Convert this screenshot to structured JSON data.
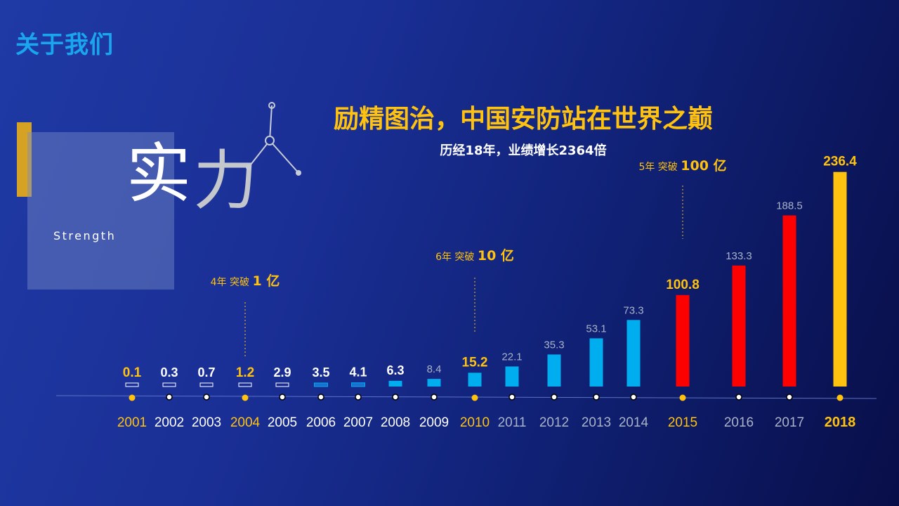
{
  "header": {
    "title": "关于我们"
  },
  "side_panel": {
    "char_1": "实",
    "char_2": "力",
    "subtitle": "Strength"
  },
  "headline": "励精图治，中国安防站在世界之巅",
  "subheadline": "历经18年，业绩增长2364倍",
  "colors": {
    "gold": "#ffc20e",
    "blue": "#00aeef",
    "dark_blue": "#1b6fd0",
    "red": "#ff0000",
    "white": "#ffffff",
    "gray": "#a9b3c8"
  },
  "chart_data": {
    "type": "bar",
    "title": "",
    "xlabel": "",
    "ylabel": "",
    "ylim": [
      0,
      240
    ],
    "categories": [
      "2001",
      "2002",
      "2003",
      "2004",
      "2005",
      "2006",
      "2007",
      "2008",
      "2009",
      "2010",
      "2011",
      "2012",
      "2013",
      "2014",
      "2015",
      "2016",
      "2017",
      "2018"
    ],
    "values": [
      0.1,
      0.3,
      0.7,
      1.2,
      2.9,
      3.5,
      4.1,
      6.3,
      8.4,
      15.2,
      22.1,
      35.3,
      53.1,
      73.3,
      100.8,
      133.3,
      188.5,
      236.4
    ],
    "value_labels": [
      "0.1",
      "0.3",
      "0.7",
      "1.2",
      "2.9",
      "3.5",
      "4.1",
      "6.3",
      "8.4",
      "15.2",
      "22.1",
      "35.3",
      "53.1",
      "73.3",
      "100.8",
      "133.3",
      "188.5",
      "236.4"
    ],
    "bar_styles": [
      "outline",
      "outline",
      "outline",
      "outline",
      "outline",
      "dark",
      "dark",
      "blue",
      "blue",
      "blue",
      "blue",
      "blue",
      "blue",
      "blue",
      "red",
      "red",
      "red",
      "gold"
    ],
    "highlight_years": [
      "2001",
      "2004",
      "2010",
      "2015",
      "2018"
    ],
    "annotations": [
      {
        "category": "2004",
        "years_text": "4年",
        "label_text": "突破",
        "value_text": "1 亿"
      },
      {
        "category": "2010",
        "years_text": "6年",
        "label_text": "突破",
        "value_text": "10 亿"
      },
      {
        "category": "2015",
        "years_text": "5年",
        "label_text": "突破",
        "value_text": "100 亿"
      }
    ],
    "grid": false,
    "legend": "none"
  }
}
